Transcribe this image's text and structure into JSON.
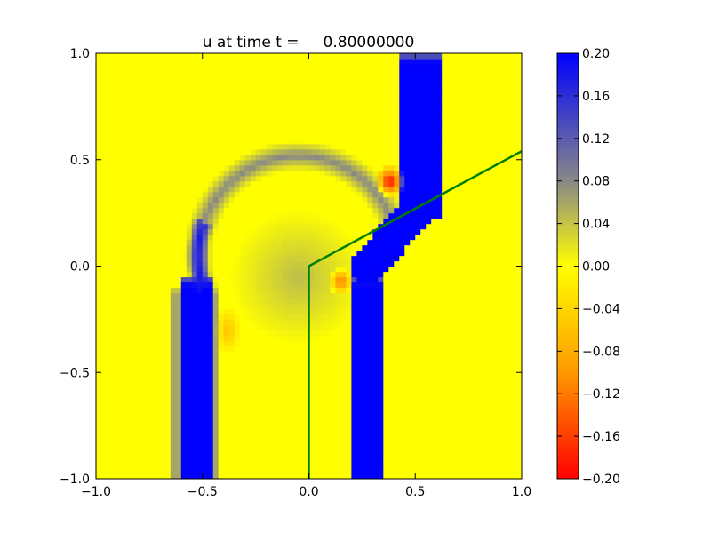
{
  "chart_data": {
    "type": "heatmap",
    "title": "u at time t =     0.80000000",
    "xlabel": "",
    "ylabel": "",
    "xlim": [
      -1.0,
      1.0
    ],
    "ylim": [
      -1.0,
      1.0
    ],
    "grid": false,
    "x_ticks": [
      "−1.0",
      "−0.5",
      "0.0",
      "0.5",
      "1.0"
    ],
    "x_tick_values": [
      -1.0,
      -0.5,
      0.0,
      0.5,
      1.0
    ],
    "y_ticks": [
      "−1.0",
      "−0.5",
      "0.0",
      "0.5",
      "1.0"
    ],
    "y_tick_values": [
      -1.0,
      -0.5,
      0.0,
      0.5,
      1.0
    ],
    "colorbar": {
      "vmin": -0.2,
      "vmax": 0.2,
      "ticks": [
        "0.20",
        "0.16",
        "0.12",
        "0.08",
        "0.04",
        "0.00",
        "−0.04",
        "−0.08",
        "−0.12",
        "−0.16",
        "−0.20"
      ],
      "tick_values": [
        0.2,
        0.16,
        0.12,
        0.08,
        0.04,
        0.0,
        -0.04,
        -0.08,
        -0.12,
        -0.16,
        -0.2
      ],
      "colors": [
        {
          "value": -0.2,
          "color": "#ff0000"
        },
        {
          "value": -0.1,
          "color": "#ff9900"
        },
        {
          "value": 0.0,
          "color": "#ffff00"
        },
        {
          "value": 0.08,
          "color": "#888888"
        },
        {
          "value": 0.2,
          "color": "#0000ff"
        }
      ]
    },
    "background_value": 0.0,
    "features": [
      {
        "name": "left-band",
        "value": 0.2,
        "shape": "band",
        "x_center": -0.53,
        "half_width": 0.08,
        "y_from": -1.0,
        "y_to": -0.05
      },
      {
        "name": "left-band-edge-glow",
        "value": 0.06,
        "shape": "band",
        "x_center": -0.53,
        "half_width": 0.11,
        "y_from": -1.0,
        "y_to": -0.1
      },
      {
        "name": "arc-upper",
        "value": 0.08,
        "shape": "arc",
        "x_center": -0.05,
        "y_center": 0.05,
        "radius": 0.47,
        "thickness": 0.07
      },
      {
        "name": "arc-left-blue",
        "value": 0.18,
        "shape": "arc-segment",
        "x_center": -0.05,
        "y_center": 0.05,
        "radius": 0.47,
        "thickness": 0.05,
        "angle_from_deg": 160,
        "angle_to_deg": 200
      },
      {
        "name": "inner-disc",
        "value": 0.05,
        "shape": "disc",
        "x_center": -0.05,
        "y_center": -0.05,
        "radius": 0.32
      },
      {
        "name": "right-band-lower",
        "value": 0.2,
        "shape": "band",
        "x_center": 0.27,
        "half_width": 0.08,
        "y_from": -1.0,
        "y_to": -0.05
      },
      {
        "name": "right-band-upper",
        "value": 0.2,
        "shape": "band",
        "x_center": 0.52,
        "half_width": 0.1,
        "y_from": 0.25,
        "y_to": 1.0
      },
      {
        "name": "shear-band",
        "value": 0.2,
        "shape": "segment",
        "x1": 0.27,
        "y1": 0.0,
        "x2": 0.55,
        "y2": 0.3,
        "half_width": 0.08
      },
      {
        "name": "red-spot-upper",
        "value": -0.2,
        "shape": "blob",
        "x_center": 0.38,
        "y_center": 0.4,
        "rx": 0.07,
        "ry": 0.08
      },
      {
        "name": "orange-spot-middle",
        "value": -0.13,
        "shape": "blob",
        "x_center": 0.15,
        "y_center": -0.07,
        "rx": 0.06,
        "ry": 0.07
      },
      {
        "name": "orange-spot-left",
        "value": -0.06,
        "shape": "blob",
        "x_center": -0.38,
        "y_center": -0.3,
        "rx": 0.06,
        "ry": 0.12
      }
    ],
    "line_overlay": {
      "color": "#007f00",
      "x": [
        0.0,
        0.0,
        1.0
      ],
      "y": [
        -1.0,
        0.0,
        0.54
      ]
    }
  }
}
